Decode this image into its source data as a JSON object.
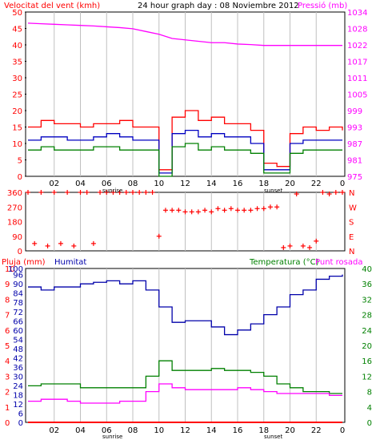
{
  "header": {
    "wind_label": "Velocitat del vent (kmh)",
    "title": "24 hour graph day : 08 Noviembre 2012",
    "pressure_label": "Pressió (mb)"
  },
  "lower_header": {
    "rain_label": "Pluja (mm)",
    "humidity_label": "Humitat",
    "temp_label": "Temperatura (°C)",
    "dew_label": "Punt rosada"
  },
  "markers": {
    "sunrise": "sunrise",
    "sunset": "sunset"
  },
  "x_ticks": [
    "02",
    "04",
    "06",
    "08",
    "10",
    "12",
    "14",
    "16",
    "18",
    "20",
    "22",
    "0"
  ],
  "colors": {
    "wind": "#ff0000",
    "gust": "#0000c0",
    "avg": "#008000",
    "pressure": "#ff00ff",
    "direction": "#ff0000",
    "humidity": "#0000aa",
    "temperature": "#008000",
    "dewpoint": "#ff00ff",
    "rain": "#ff0000"
  },
  "chart_data": [
    {
      "type": "line",
      "y_left": {
        "label": "Velocitat del vent (kmh)",
        "ticks": [
          "0",
          "5",
          "10",
          "15",
          "20",
          "25",
          "30",
          "35",
          "40",
          "45",
          "50"
        ],
        "range": [
          0,
          50
        ]
      },
      "y_right": {
        "label": "Pressió (mb)",
        "ticks": [
          "975",
          "981",
          "987",
          "993",
          "999",
          "1005",
          "1011",
          "1017",
          "1022",
          "1028",
          "1034"
        ],
        "range": [
          975,
          1034
        ]
      },
      "x_hours": [
        0,
        1,
        2,
        3,
        4,
        5,
        6,
        7,
        8,
        9,
        10,
        11,
        12,
        13,
        14,
        15,
        16,
        17,
        18,
        19,
        20,
        21,
        22,
        23,
        24
      ],
      "series": [
        {
          "key": "gust",
          "axis": "left",
          "values": [
            15,
            17,
            16,
            16,
            15,
            16,
            16,
            17,
            15,
            15,
            2,
            18,
            20,
            17,
            18,
            16,
            16,
            14,
            4,
            3,
            13,
            15,
            14,
            15,
            14
          ]
        },
        {
          "key": "speed",
          "axis": "left",
          "values": [
            11,
            12,
            12,
            11,
            11,
            12,
            13,
            12,
            11,
            11,
            1,
            13,
            14,
            12,
            13,
            12,
            12,
            10,
            2,
            2,
            10,
            11,
            11,
            11,
            11
          ]
        },
        {
          "key": "avg",
          "axis": "left",
          "values": [
            8,
            9,
            8,
            8,
            8,
            9,
            9,
            8,
            8,
            8,
            0,
            9,
            10,
            8,
            9,
            8,
            8,
            7,
            1,
            1,
            7,
            8,
            8,
            8,
            8
          ]
        },
        {
          "key": "pressure",
          "axis": "right",
          "values": [
            1030,
            1029.8,
            1029.6,
            1029.4,
            1029.2,
            1029,
            1028.7,
            1028.4,
            1028,
            1027,
            1026,
            1024.5,
            1024,
            1023.5,
            1023,
            1023,
            1022.5,
            1022.3,
            1022,
            1022,
            1022,
            1022,
            1022,
            1022,
            1022
          ]
        }
      ]
    },
    {
      "type": "scatter",
      "y_left": {
        "ticks": [
          "360",
          "270",
          "180",
          "90",
          "0"
        ],
        "range": [
          0,
          360
        ]
      },
      "y_right": {
        "ticks": [
          "N",
          "W",
          "S",
          "E",
          "N"
        ]
      },
      "x_hours": [
        0,
        0.5,
        1,
        1.5,
        2,
        2.5,
        3,
        3.5,
        4,
        4.5,
        5,
        5.5,
        6,
        6.5,
        7,
        7.5,
        8,
        8.5,
        9,
        9.5,
        10,
        10.5,
        11,
        11.5,
        12,
        12.5,
        13,
        13.5,
        14,
        14.5,
        15,
        15.5,
        16,
        16.5,
        17,
        17.5,
        18,
        18.5,
        19,
        19.5,
        20,
        20.5,
        21,
        21.5,
        22,
        22.5,
        23,
        23.5,
        24
      ],
      "values": [
        360,
        45,
        360,
        30,
        360,
        45,
        360,
        30,
        360,
        360,
        45,
        360,
        360,
        360,
        360,
        360,
        360,
        360,
        360,
        360,
        90,
        250,
        250,
        250,
        240,
        240,
        240,
        250,
        240,
        260,
        250,
        260,
        250,
        250,
        250,
        260,
        260,
        270,
        270,
        20,
        30,
        350,
        30,
        20,
        60,
        360,
        350,
        360,
        360
      ]
    },
    {
      "type": "line",
      "y_left_rain": {
        "label": "Pluja (mm)",
        "ticks": [
          "0",
          "1",
          "2",
          "3",
          "4",
          "5",
          "6",
          "7",
          "8",
          "9",
          "10"
        ],
        "range": [
          0,
          10
        ]
      },
      "y_left_humidity": {
        "label": "Humitat",
        "ticks": [
          "0",
          "6",
          "12",
          "18",
          "24",
          "30",
          "36",
          "42",
          "48",
          "54",
          "60",
          "66",
          "72",
          "78",
          "84",
          "90",
          "96",
          "100"
        ],
        "range": [
          0,
          100
        ]
      },
      "y_right": {
        "label": "Temperatura (°C)",
        "ticks": [
          "0",
          "4",
          "8",
          "12",
          "16",
          "20",
          "24",
          "28",
          "32",
          "36",
          "40"
        ],
        "range": [
          0,
          40
        ]
      },
      "x_hours": [
        0,
        1,
        2,
        3,
        4,
        5,
        6,
        7,
        8,
        9,
        10,
        11,
        12,
        13,
        14,
        15,
        16,
        17,
        18,
        19,
        20,
        21,
        22,
        23,
        24
      ],
      "series": [
        {
          "key": "humidity",
          "axis": "humidity",
          "values": [
            88,
            86,
            88,
            88,
            90,
            91,
            92,
            90,
            92,
            86,
            75,
            65,
            66,
            66,
            62,
            57,
            60,
            64,
            70,
            75,
            83,
            86,
            93,
            95,
            96
          ]
        },
        {
          "key": "temperature",
          "axis": "right",
          "values": [
            9.5,
            10,
            10,
            10,
            9,
            9,
            9,
            9,
            9,
            12,
            16,
            13.5,
            13.5,
            13.5,
            14,
            13.5,
            13.5,
            13,
            12,
            10,
            9,
            8,
            8,
            7.5,
            7.5
          ]
        },
        {
          "key": "dewpoint",
          "axis": "right",
          "values": [
            5.5,
            6,
            6,
            5.5,
            5,
            5,
            5,
            5.5,
            5.5,
            8,
            10,
            9,
            8.5,
            8.5,
            8.5,
            8.5,
            9,
            8.5,
            8,
            7.5,
            7.5,
            7.5,
            7.5,
            7,
            7
          ]
        },
        {
          "key": "rain",
          "axis": "rain",
          "values": [
            0,
            0,
            0,
            0,
            0,
            0,
            0,
            0,
            0,
            0,
            0,
            0,
            0,
            0,
            0,
            0,
            0,
            0,
            0,
            0,
            0,
            0,
            0,
            0,
            0
          ]
        }
      ]
    }
  ]
}
